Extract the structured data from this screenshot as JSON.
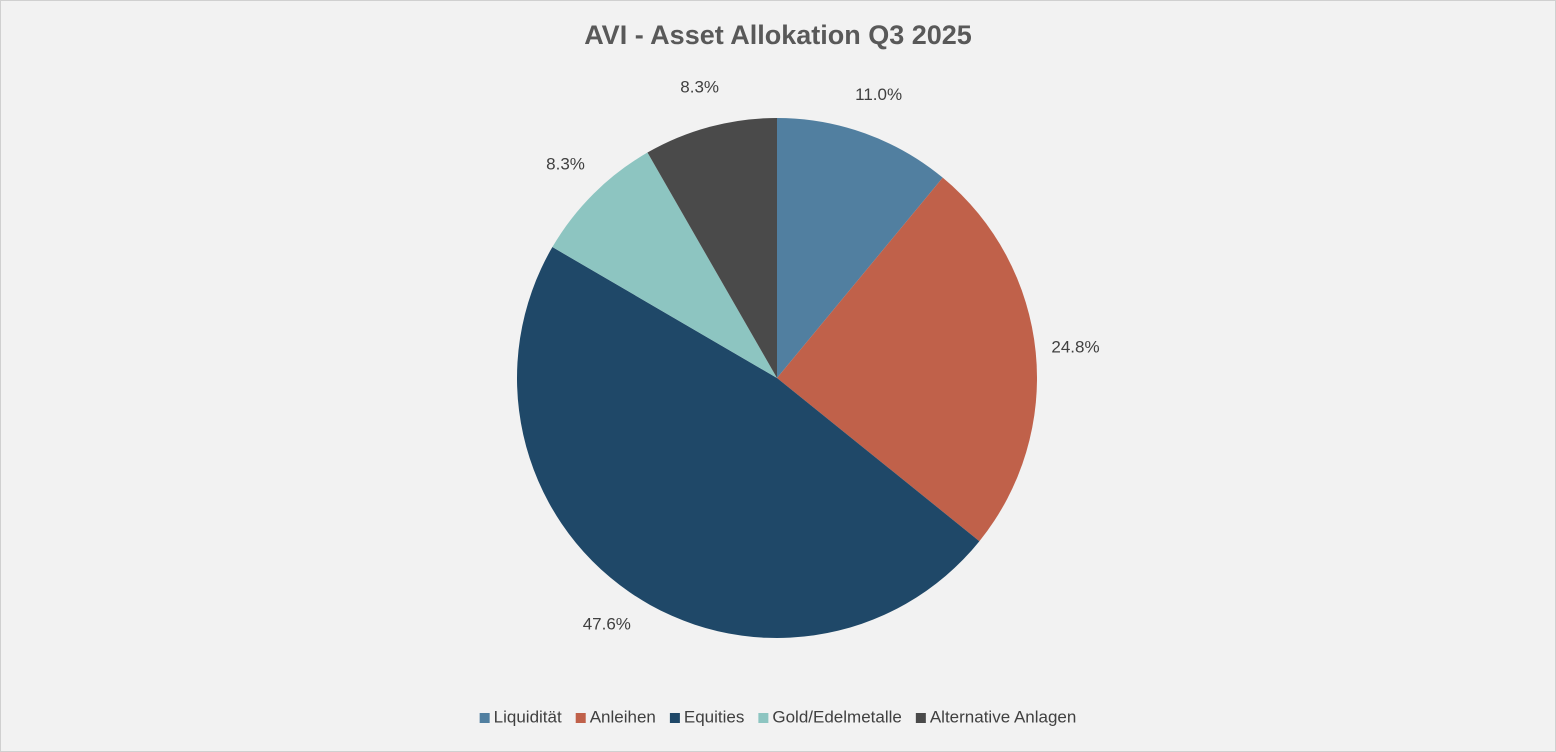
{
  "chart_data": {
    "type": "pie",
    "title": "AVI - Asset Allokation Q3 2025",
    "categories": [
      "Liquidität",
      "Anleihen",
      "Equities",
      "Gold/Edelmetalle",
      "Alternative Anlagen"
    ],
    "values": [
      11.0,
      24.8,
      47.6,
      8.3,
      8.3
    ],
    "value_labels": [
      "11.0%",
      "24.8%",
      "47.6%",
      "8.3%",
      "8.3%"
    ],
    "colors": [
      "#517fa0",
      "#c0614a",
      "#1f4868",
      "#8dc5c1",
      "#4a4a4a"
    ],
    "legend": "bottom"
  }
}
